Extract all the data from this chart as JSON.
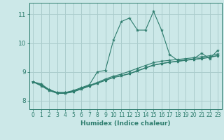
{
  "background_color": "#cce8e8",
  "grid_color": "#aacccc",
  "line_color": "#2e7d6e",
  "xlabel": "Humidex (Indice chaleur)",
  "xlim": [
    -0.5,
    23.5
  ],
  "ylim": [
    7.7,
    11.4
  ],
  "yticks": [
    8,
    9,
    10,
    11
  ],
  "xticks": [
    0,
    1,
    2,
    3,
    4,
    5,
    6,
    7,
    8,
    9,
    10,
    11,
    12,
    13,
    14,
    15,
    16,
    17,
    18,
    19,
    20,
    21,
    22,
    23
  ],
  "series": [
    {
      "x": [
        0,
        1,
        2,
        3,
        4,
        5,
        6,
        7,
        8,
        9,
        10,
        11,
        12,
        13,
        14,
        15,
        16,
        17,
        18,
        19,
        20,
        21,
        22,
        23
      ],
      "y": [
        8.65,
        8.58,
        8.38,
        8.28,
        8.28,
        8.35,
        8.45,
        8.55,
        9.0,
        9.05,
        10.1,
        10.75,
        10.87,
        10.45,
        10.45,
        11.1,
        10.45,
        9.6,
        9.4,
        9.4,
        9.45,
        9.65,
        9.45,
        9.75
      ]
    },
    {
      "x": [
        0,
        1,
        2,
        3,
        4,
        5,
        6,
        7,
        8,
        9,
        10,
        11,
        12,
        13,
        14,
        15,
        16,
        17,
        18,
        19,
        20,
        21,
        22,
        23
      ],
      "y": [
        8.65,
        8.55,
        8.38,
        8.28,
        8.28,
        8.33,
        8.43,
        8.53,
        8.63,
        8.75,
        8.85,
        8.92,
        9.02,
        9.12,
        9.22,
        9.32,
        9.37,
        9.4,
        9.43,
        9.46,
        9.49,
        9.52,
        9.56,
        9.62
      ]
    },
    {
      "x": [
        0,
        1,
        2,
        3,
        4,
        5,
        6,
        7,
        8,
        9,
        10,
        11,
        12,
        13,
        14,
        15,
        16,
        17,
        18,
        19,
        20,
        21,
        22,
        23
      ],
      "y": [
        8.65,
        8.53,
        8.36,
        8.26,
        8.26,
        8.31,
        8.41,
        8.51,
        8.61,
        8.71,
        8.81,
        8.87,
        8.94,
        9.04,
        9.14,
        9.24,
        9.29,
        9.34,
        9.37,
        9.41,
        9.44,
        9.47,
        9.51,
        9.57
      ]
    },
    {
      "x": [
        0,
        1,
        2,
        3,
        4,
        5,
        6,
        7,
        8,
        9,
        10,
        11,
        12,
        13,
        14,
        15,
        16,
        17,
        18,
        19,
        20,
        21,
        22,
        23
      ],
      "y": [
        8.65,
        8.51,
        8.35,
        8.25,
        8.25,
        8.3,
        8.4,
        8.5,
        8.6,
        8.7,
        8.8,
        8.86,
        8.93,
        9.03,
        9.13,
        9.23,
        9.28,
        9.33,
        9.36,
        9.4,
        9.43,
        9.46,
        9.5,
        9.56
      ]
    }
  ]
}
